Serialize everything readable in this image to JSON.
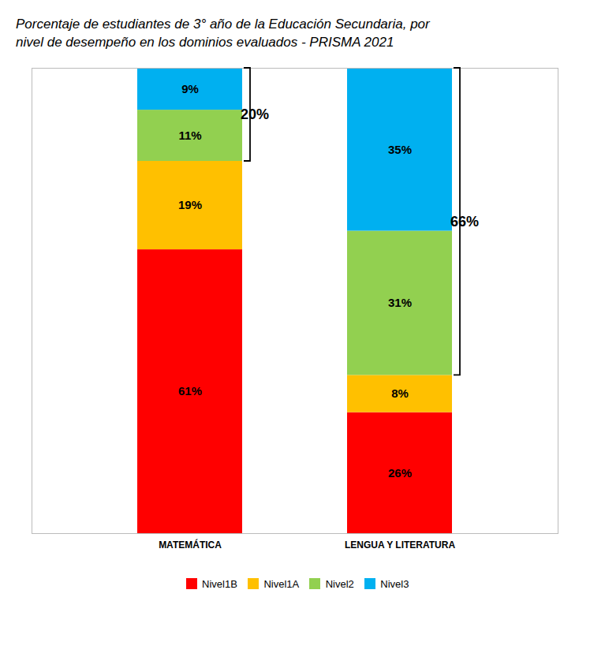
{
  "chart_data": {
    "type": "bar",
    "stacked": true,
    "title": "Porcentaje de estudiantes de 3° año de la Educación Secundaria, por nivel de desempeño en los dominios evaluados - PRISMA 2021",
    "categories": [
      "MATEMÁTICA",
      "LENGUA Y LITERATURA"
    ],
    "series": [
      {
        "name": "Nivel1B",
        "color": "#FF0000",
        "values": [
          61,
          26
        ],
        "value_labels": [
          "61%",
          "26%"
        ]
      },
      {
        "name": "Nivel1A",
        "color": "#FFC000",
        "values": [
          19,
          8
        ],
        "value_labels": [
          "19%",
          "8%"
        ]
      },
      {
        "name": "Nivel2",
        "color": "#92D050",
        "values": [
          11,
          31
        ],
        "value_labels": [
          "11%",
          "31%"
        ]
      },
      {
        "name": "Nivel3",
        "color": "#00B0F0",
        "values": [
          9,
          35
        ],
        "value_labels": [
          "9%",
          "35%"
        ]
      }
    ],
    "ylim": [
      0,
      100
    ],
    "tick_labels": "x",
    "data_labels": true,
    "grid": false,
    "legend": "bottom",
    "annotations": [
      {
        "text": "20%",
        "category": "MATEMÁTICA",
        "y_start": 80,
        "y_end": 100
      },
      {
        "text": "66%",
        "category": "LENGUA Y LITERATURA",
        "y_start": 34,
        "y_end": 100
      }
    ]
  }
}
